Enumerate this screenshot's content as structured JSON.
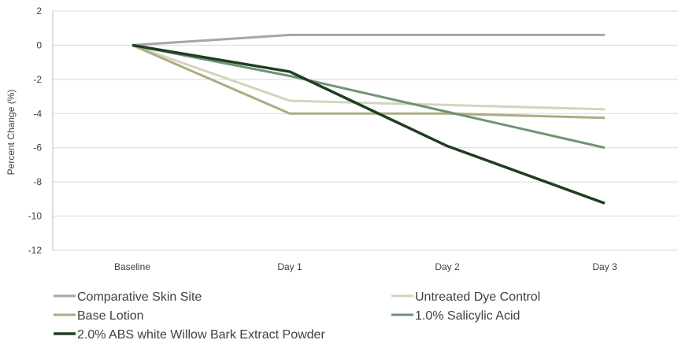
{
  "chart_data": {
    "type": "line",
    "title": "",
    "xlabel": "",
    "ylabel": "Percent Change (%)",
    "ylim": [
      -12,
      2
    ],
    "ytick_step": 2,
    "categories": [
      "Baseline",
      "Day 1",
      "Day 2",
      "Day 3"
    ],
    "grid": "horizontal",
    "legend_position": "bottom",
    "series": [
      {
        "name": "Comparative Skin Site",
        "color": "#a6a6a6",
        "values": [
          0,
          0.6,
          0.6,
          0.6
        ]
      },
      {
        "name": "Untreated Dye Control",
        "color": "#d6d3bd",
        "values": [
          0,
          -3.25,
          -3.5,
          -3.75
        ]
      },
      {
        "name": "Base Lotion",
        "color": "#aeab82",
        "values": [
          0,
          -4.0,
          -4.0,
          -4.25
        ]
      },
      {
        "name": "1.0% Salicylic Acid",
        "color": "#6f9375",
        "values": [
          0,
          -1.8,
          -3.9,
          -6.0
        ]
      },
      {
        "name": "2.0% ABS white Willow Bark Extract Powder",
        "color": "#1f3e22",
        "values": [
          0,
          -1.55,
          -5.9,
          -9.25
        ]
      }
    ]
  }
}
